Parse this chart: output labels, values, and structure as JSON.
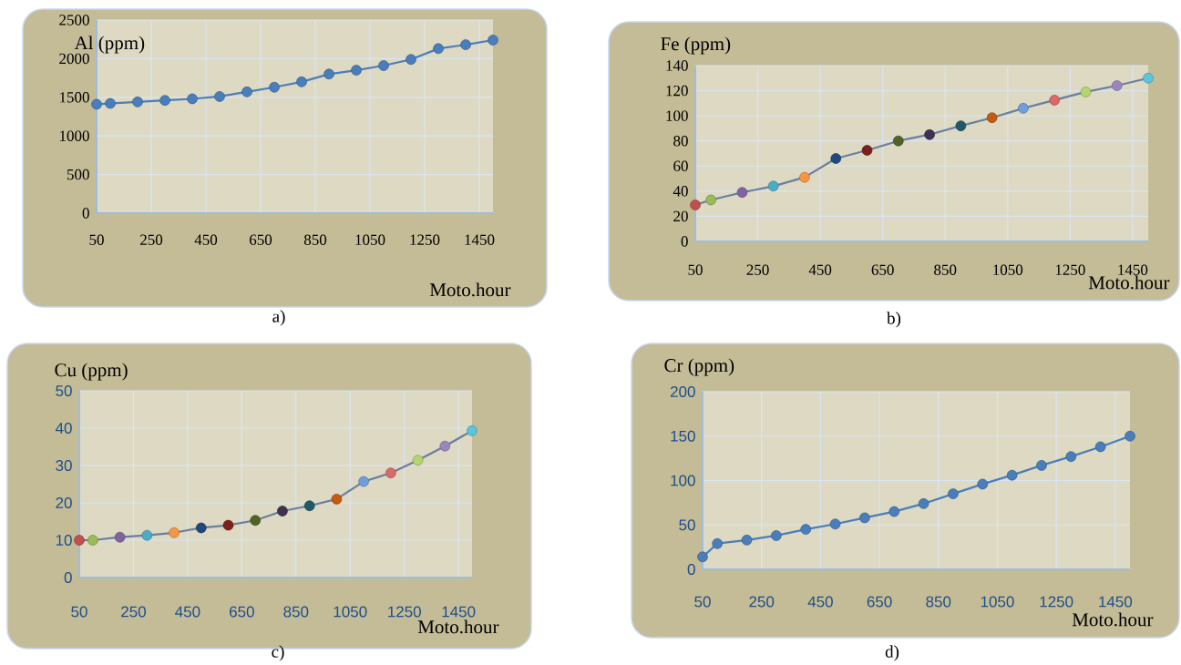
{
  "chart_data": [
    {
      "type": "line",
      "ylabel": "Al (ppm)",
      "xlabel": "Moto.hour",
      "annotations": [
        "a)"
      ],
      "x": [
        50,
        100,
        200,
        300,
        400,
        500,
        600,
        700,
        800,
        900,
        1000,
        1100,
        1200,
        1300,
        1400,
        1500
      ],
      "xlim": [
        50,
        1500
      ],
      "xticks": [
        50,
        250,
        450,
        650,
        850,
        1050,
        1250,
        1450
      ],
      "ylim": [
        0,
        2500
      ],
      "yticks": [
        0,
        500,
        1000,
        1500,
        2000,
        2500
      ],
      "grid": true,
      "marker": "circle",
      "series": [
        {
          "color": "#4a7ebb",
          "values": [
            1410,
            1420,
            1440,
            1460,
            1480,
            1510,
            1570,
            1630,
            1700,
            1800,
            1850,
            1910,
            1990,
            2130,
            2180,
            2240
          ]
        }
      ]
    },
    {
      "type": "line",
      "ylabel": "Fe (ppm)",
      "xlabel": "Moto.hour",
      "annotations": [
        "b)"
      ],
      "x": [
        50,
        100,
        200,
        300,
        400,
        500,
        600,
        700,
        800,
        900,
        1000,
        1100,
        1200,
        1300,
        1400,
        1500
      ],
      "xlim": [
        50,
        1500
      ],
      "xticks": [
        50,
        250,
        450,
        650,
        850,
        1050,
        1250,
        1450
      ],
      "ylim": [
        0,
        140
      ],
      "yticks": [
        0,
        20,
        40,
        60,
        80,
        100,
        120,
        140
      ],
      "grid": true,
      "marker": "circle",
      "series": [
        {
          "color": "#6a7fa0",
          "colors": [
            "#c0504d",
            "#9bbb59",
            "#8064a2",
            "#4bacc6",
            "#f79646",
            "#1f497d",
            "#7d1f1c",
            "#4f6228",
            "#3f3151",
            "#215967",
            "#c55a11",
            "#6f9fd8",
            "#d9696a",
            "#b3d56d",
            "#9b86bc",
            "#5bc5de"
          ],
          "values": [
            29,
            33,
            39,
            44,
            51,
            66,
            72.5,
            80,
            85,
            92,
            98.5,
            106,
            112.5,
            119,
            124,
            130
          ]
        }
      ]
    },
    {
      "type": "line",
      "ylabel": "Cu (ppm)",
      "xlabel": "Moto.hour",
      "annotations": [
        "c)"
      ],
      "x": [
        50,
        100,
        200,
        300,
        400,
        500,
        600,
        700,
        800,
        900,
        1000,
        1100,
        1200,
        1300,
        1400,
        1500
      ],
      "xlim": [
        50,
        1500
      ],
      "xticks": [
        50,
        250,
        450,
        650,
        850,
        1050,
        1250,
        1450
      ],
      "ylim": [
        0,
        50
      ],
      "yticks": [
        0,
        10,
        20,
        30,
        40,
        50
      ],
      "grid": true,
      "marker": "circle",
      "series": [
        {
          "color": "#6a7fa0",
          "colors": [
            "#c0504d",
            "#9bbb59",
            "#8064a2",
            "#4bacc6",
            "#f79646",
            "#1f497d",
            "#7d1f1c",
            "#4f6228",
            "#3f3151",
            "#215967",
            "#c55a11",
            "#6f9fd8",
            "#d9696a",
            "#b3d56d",
            "#9b86bc",
            "#5bc5de"
          ],
          "values": [
            10,
            10,
            10.8,
            11.3,
            12,
            13.3,
            14,
            15.3,
            17.8,
            19.2,
            21,
            25.7,
            28,
            31.4,
            35.2,
            39.3
          ]
        }
      ]
    },
    {
      "type": "line",
      "ylabel": "Cr (ppm)",
      "xlabel": "Moto.hour",
      "annotations": [
        "d)"
      ],
      "x": [
        50,
        100,
        200,
        300,
        400,
        500,
        600,
        700,
        800,
        900,
        1000,
        1100,
        1200,
        1300,
        1400,
        1500
      ],
      "xlim": [
        50,
        1500
      ],
      "xticks": [
        50,
        250,
        450,
        650,
        850,
        1050,
        1250,
        1450
      ],
      "ylim": [
        0,
        200
      ],
      "yticks": [
        0,
        50,
        100,
        150,
        200
      ],
      "grid": true,
      "marker": "circle",
      "series": [
        {
          "color": "#4a7ebb",
          "values": [
            14,
            29,
            33,
            38,
            45,
            51,
            58,
            65,
            74,
            85,
            96,
            106,
            117,
            127,
            138,
            150
          ]
        }
      ]
    }
  ]
}
